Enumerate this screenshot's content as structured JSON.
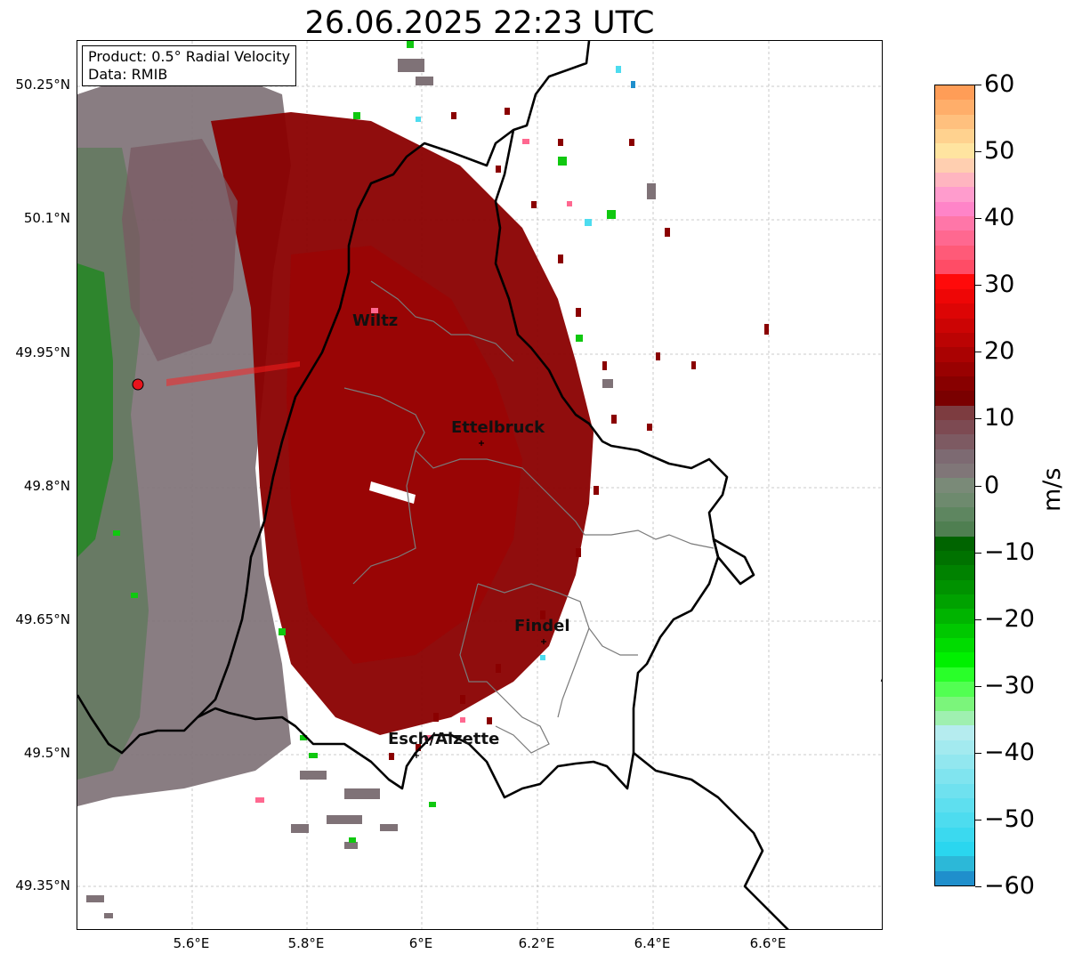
{
  "title": "26.06.2025 22:23 UTC",
  "info": {
    "product": "Product: 0.5° Radial Velocity",
    "data": "Data: RMIB"
  },
  "map": {
    "lat_ticks": [
      "50.25°N",
      "50.1°N",
      "49.95°N",
      "49.8°N",
      "49.65°N",
      "49.5°N",
      "49.35°N"
    ],
    "lon_ticks": [
      "5.6°E",
      "5.8°E",
      "6°E",
      "6.2°E",
      "6.4°E",
      "6.6°E"
    ],
    "cities": [
      {
        "name": "Wiltz"
      },
      {
        "name": "Ettelbruck"
      },
      {
        "name": "Findel"
      },
      {
        "name": "Esch/Alzette"
      }
    ],
    "radar_site_color": "#e8141c"
  },
  "colorbar": {
    "unit": "m/s",
    "ticks": [
      "60",
      "50",
      "40",
      "30",
      "20",
      "10",
      "0",
      "−10",
      "−20",
      "−30",
      "−40",
      "−50",
      "−60"
    ],
    "range": [
      -60,
      60
    ],
    "colors_top_to_bottom": [
      "#ff9d57",
      "#ffae6a",
      "#ffc07e",
      "#ffd28f",
      "#ffe4a0",
      "#ffcfb0",
      "#ffb5c0",
      "#ff9ccd",
      "#ff84c8",
      "#ff76a8",
      "#ff6890",
      "#ff5a78",
      "#ff4c66",
      "#ff0a0a",
      "#ee0606",
      "#dd0505",
      "#cc0404",
      "#bb0303",
      "#aa0202",
      "#990101",
      "#880000",
      "#7a0000",
      "#7d3c40",
      "#7d4a52",
      "#7d5a62",
      "#7d6a72",
      "#807678",
      "#7a8a78",
      "#6e8a6e",
      "#5e8660",
      "#4f7f51",
      "#006400",
      "#007200",
      "#008200",
      "#009200",
      "#00a200",
      "#00b400",
      "#00c800",
      "#00dc00",
      "#00f000",
      "#29ff29",
      "#52ff52",
      "#7bf57b",
      "#9ff0b0",
      "#b5ecef",
      "#a3eaef",
      "#92e7ef",
      "#80e4ef",
      "#6fe1ef",
      "#5edfef",
      "#4ddcef",
      "#3bd9ef",
      "#2ad6ef",
      "#2cb8d8",
      "#1f8fcc"
    ]
  }
}
